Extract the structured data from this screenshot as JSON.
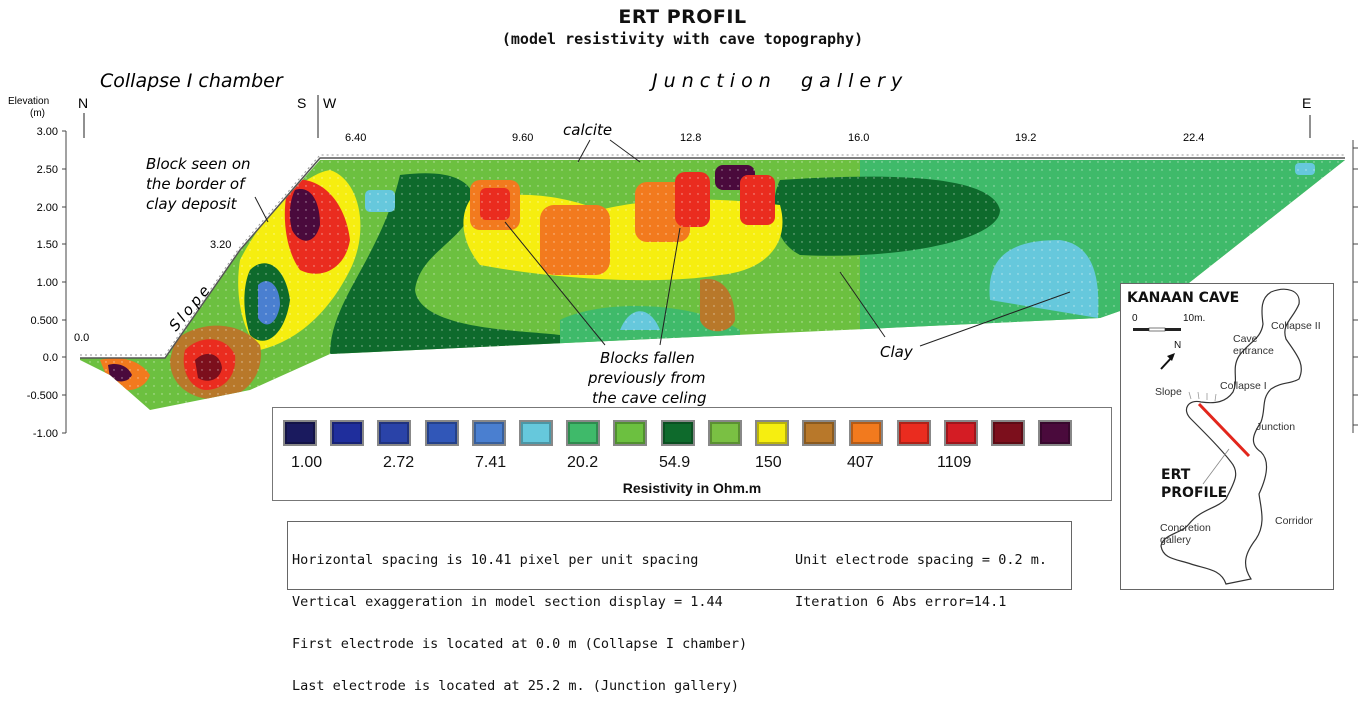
{
  "title": "ERT PROFIL",
  "subtitle": "(model resistivity with cave topography)",
  "section_labels": {
    "collapse_chamber": "Collapse I chamber",
    "junction_gallery": "J u n c t i o n     g a l l e r y"
  },
  "orientation": {
    "north": "N",
    "south": "S",
    "west": "W",
    "east": "E"
  },
  "y_axis": {
    "label_line1": "Elevation",
    "label_line2": "(m)",
    "ticks": [
      "3.00",
      "2.50",
      "2.00",
      "1.50",
      "1.00",
      "0.500",
      "0.0",
      "-0.500",
      "-1.00"
    ]
  },
  "x_ticks": [
    "0.0",
    "3.20",
    "6.40",
    "9.60",
    "12.8",
    "16.0",
    "19.2",
    "22.4"
  ],
  "annotations": {
    "calcite": "calcite",
    "block_border_line1": "Block seen on",
    "block_border_line2": "the border of",
    "block_border_line3": "clay deposit",
    "slope": "Slope",
    "blocks_fallen_line1": "Blocks fallen",
    "blocks_fallen_line2": "previously from",
    "blocks_fallen_line3": "the cave celing",
    "clay": "Clay"
  },
  "legend": {
    "title": "Resistivity in Ohm.m",
    "colors": [
      "#1a1a5e",
      "#1f2e9c",
      "#2a43a8",
      "#3157b8",
      "#4a7fd0",
      "#66c8dc",
      "#3fba6a",
      "#6cc040",
      "#0e6a2c",
      "#7ac043",
      "#f6ee10",
      "#b8782a",
      "#f27a1e",
      "#ea2c1f",
      "#d41c24",
      "#7c0f1c",
      "#4a0a3c"
    ],
    "values": [
      "1.00",
      "2.72",
      "7.41",
      "20.2",
      "54.9",
      "150",
      "407",
      "1109"
    ]
  },
  "info": {
    "line1": "Horizontal spacing is 10.41 pixel per unit spacing",
    "line2": "Vertical exaggeration in model section display = 1.44",
    "line3": "First electrode is located at 0.0 m (Collapse I chamber)",
    "line4": "Last electrode is located at 25.2 m. (Junction gallery)",
    "right1": "Unit electrode spacing = 0.2 m.",
    "right2": "Iteration 6 Abs error=14.1"
  },
  "inset": {
    "title": "KANAAN CAVE",
    "scale_start": "0",
    "scale_end": "10m.",
    "north": "N",
    "collapse_ii": "Collapse II",
    "cave_entrance_line1": "Cave",
    "cave_entrance_line2": "entrance",
    "collapse_i": "Collapse I",
    "slope": "Slope",
    "junction": "Junction",
    "ert_line1": "ERT",
    "ert_line2": "PROFILE",
    "corridor": "Corridor",
    "concretion_line1": "Concretion",
    "concretion_line2": "gallery"
  }
}
